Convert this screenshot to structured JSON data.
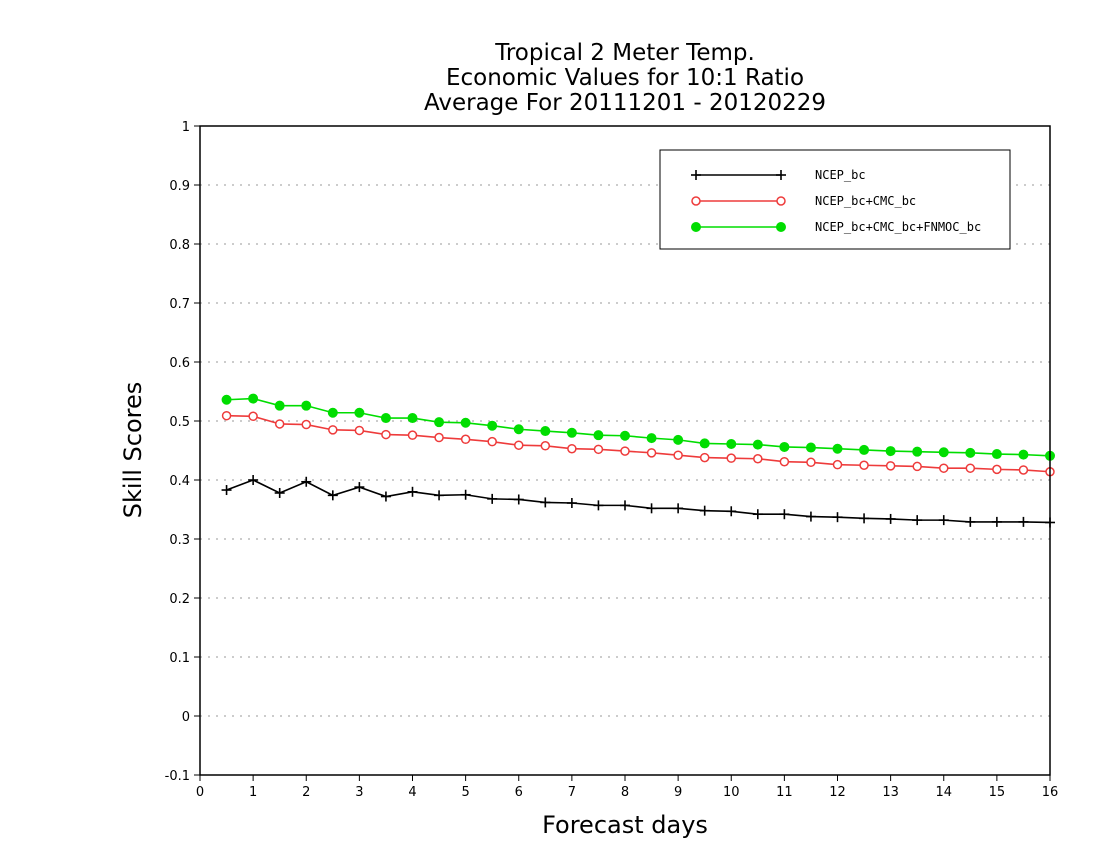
{
  "chart_data": {
    "type": "line",
    "title_lines": [
      "Tropical 2 Meter Temp.",
      "Economic Values for 10:1 Ratio",
      "Average For 20111201 - 20120229"
    ],
    "xlabel": "Forecast days",
    "ylabel": "Skill Scores",
    "xlim": [
      0,
      16
    ],
    "ylim": [
      -0.1,
      1
    ],
    "xticks": [
      0,
      1,
      2,
      3,
      4,
      5,
      6,
      7,
      8,
      9,
      10,
      11,
      12,
      13,
      14,
      15,
      16
    ],
    "xtick_labels": [
      "0",
      "1",
      "2",
      "3",
      "4",
      "5",
      "6",
      "7",
      "8",
      "9",
      "10",
      "11",
      "12",
      "13",
      "14",
      "15",
      "16"
    ],
    "yticks": [
      -0.1,
      0,
      0.1,
      0.2,
      0.3,
      0.4,
      0.5,
      0.6,
      0.7,
      0.8,
      0.9,
      1
    ],
    "ytick_labels": [
      "-0.1",
      "0",
      "0.1",
      "0.2",
      "0.3",
      "0.4",
      "0.5",
      "0.6",
      "0.7",
      "0.8",
      "0.9",
      "1"
    ],
    "grid": true,
    "legend_position": "top-right",
    "x": [
      0.5,
      1,
      1.5,
      2,
      2.5,
      3,
      3.5,
      4,
      4.5,
      5,
      5.5,
      6,
      6.5,
      7,
      7.5,
      8,
      8.5,
      9,
      9.5,
      10,
      10.5,
      11,
      11.5,
      12,
      12.5,
      13,
      13.5,
      14,
      14.5,
      15,
      15.5,
      16
    ],
    "series": [
      {
        "name": "NCEP_bc",
        "color": "#000000",
        "marker": "plus",
        "values": [
          0.383,
          0.4,
          0.378,
          0.397,
          0.374,
          0.388,
          0.372,
          0.38,
          0.374,
          0.375,
          0.368,
          0.367,
          0.362,
          0.361,
          0.357,
          0.357,
          0.352,
          0.352,
          0.348,
          0.347,
          0.342,
          0.342,
          0.338,
          0.337,
          0.335,
          0.334,
          0.332,
          0.332,
          0.329,
          0.329,
          0.329,
          0.328
        ]
      },
      {
        "name": "NCEP_bc+CMC_bc",
        "color": "#ee3b3b",
        "marker": "open-circle",
        "values": [
          0.509,
          0.508,
          0.495,
          0.494,
          0.485,
          0.484,
          0.477,
          0.476,
          0.472,
          0.469,
          0.465,
          0.459,
          0.458,
          0.453,
          0.452,
          0.449,
          0.446,
          0.442,
          0.438,
          0.437,
          0.436,
          0.431,
          0.43,
          0.426,
          0.425,
          0.424,
          0.423,
          0.42,
          0.42,
          0.418,
          0.417,
          0.414
        ]
      },
      {
        "name": "NCEP_bc+CMC_bc+FNMOC_bc",
        "color": "#00dd00",
        "marker": "filled-circle",
        "values": [
          0.536,
          0.538,
          0.526,
          0.526,
          0.514,
          0.514,
          0.505,
          0.505,
          0.498,
          0.497,
          0.492,
          0.486,
          0.483,
          0.48,
          0.476,
          0.475,
          0.471,
          0.468,
          0.462,
          0.461,
          0.46,
          0.456,
          0.455,
          0.453,
          0.451,
          0.449,
          0.448,
          0.447,
          0.446,
          0.444,
          0.443,
          0.441
        ]
      }
    ]
  }
}
